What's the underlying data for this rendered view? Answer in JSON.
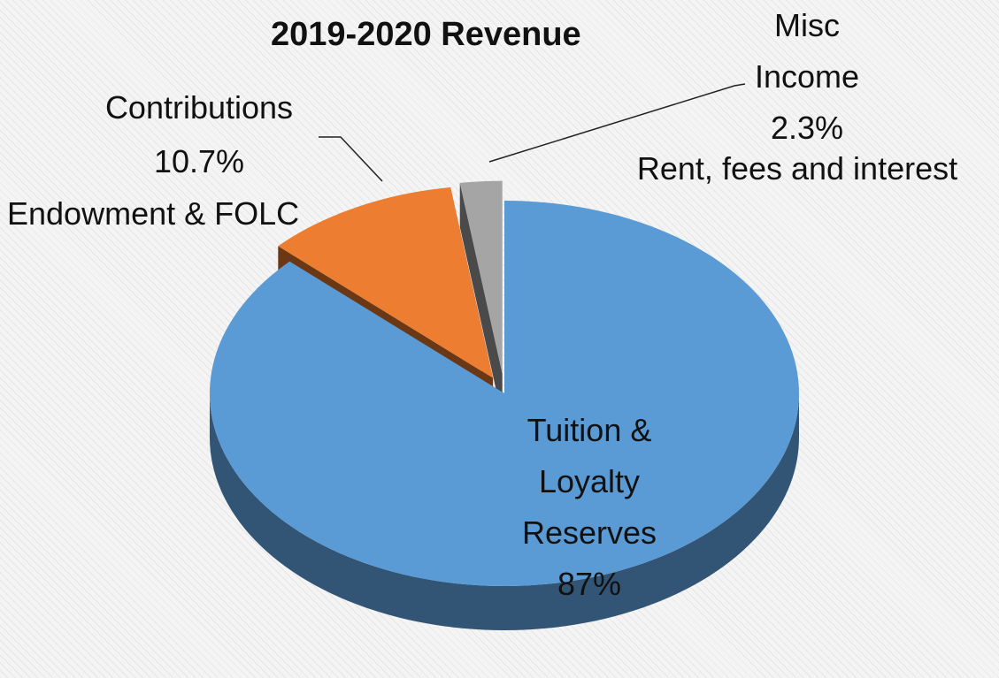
{
  "chart_data": {
    "type": "pie",
    "title": "2019-2020 Revenue",
    "categories": [
      "Tuition & Loyalty Reserves",
      "Contributions",
      "Misc Income"
    ],
    "values": [
      87,
      10.7,
      2.3
    ],
    "value_labels": [
      "87%",
      "10.7%",
      "2.3%"
    ],
    "colors": [
      "#5b9bd5",
      "#ed7d31",
      "#a5a5a5"
    ],
    "annotations": [
      "Endowment & FOLC",
      "Rent, fees and interest"
    ]
  }
}
